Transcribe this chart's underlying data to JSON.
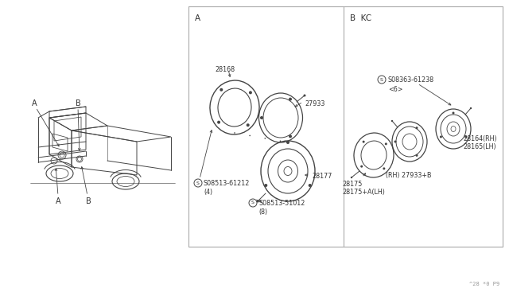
{
  "bg_color": "#ffffff",
  "line_color": "#444444",
  "text_color": "#333333",
  "fig_width": 6.4,
  "fig_height": 3.72,
  "dpi": 100,
  "border_color": "#aaaaaa",
  "parts_label_fontsize": 5.8,
  "section_label_fontsize": 7.5,
  "footer_text": "^28 *0 P9",
  "section_a_label": "A",
  "section_b_label": "B  KC",
  "part_28168": "28168",
  "part_27933": "27933",
  "part_28177": "28177",
  "part_s08513_61212": "S08513-61212",
  "part_s08513_61212_qty": "(4)",
  "part_s08513_51012": "S08513-51012",
  "part_s08513_51012_qty": "(8)",
  "part_s08363_61238": "S08363-61238",
  "part_s08363_61238_qty": "<6>",
  "part_28164": "28164(RH)",
  "part_28165": "28165(LH)",
  "part_27933b": "(RH) 27933+B",
  "part_28175": "28175",
  "part_28175a": "28175+A(LH)"
}
